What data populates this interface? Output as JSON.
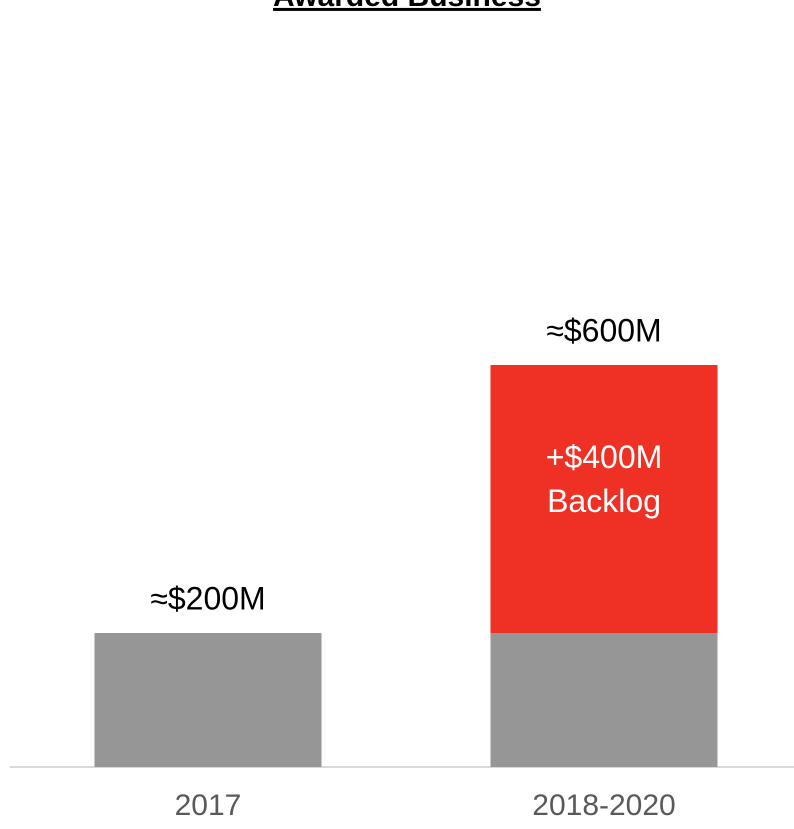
{
  "chart_data": {
    "type": "stacked-bar",
    "title": "Awarded Business",
    "categories": [
      "2017",
      "2018-2020"
    ],
    "series": [
      {
        "color": "#969696",
        "values": [
          200,
          200
        ]
      },
      {
        "color": "#ee3124",
        "values": [
          null,
          400
        ],
        "value_labels": [
          null,
          "+$400M Backlog"
        ]
      }
    ],
    "totals": {
      "values": [
        200,
        600
      ],
      "labels": [
        "≈$200M",
        "≈$600M"
      ]
    }
  }
}
